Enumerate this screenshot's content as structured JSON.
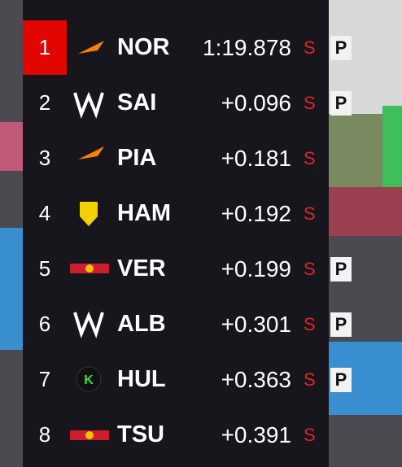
{
  "rows": [
    {
      "pos": "1",
      "driver": "NOR",
      "time": "1:19.878",
      "tyre": "S",
      "badge": "P"
    },
    {
      "pos": "2",
      "driver": "SAI",
      "time": "+0.096",
      "tyre": "S",
      "badge": "P"
    },
    {
      "pos": "3",
      "driver": "PIA",
      "time": "+0.181",
      "tyre": "S"
    },
    {
      "pos": "4",
      "driver": "HAM",
      "time": "+0.192",
      "tyre": "S"
    },
    {
      "pos": "5",
      "driver": "VER",
      "time": "+0.199",
      "tyre": "S",
      "badge": "P"
    },
    {
      "pos": "6",
      "driver": "ALB",
      "time": "+0.301",
      "tyre": "S",
      "badge": "P"
    },
    {
      "pos": "7",
      "driver": "HUL",
      "time": "+0.363",
      "tyre": "S",
      "badge": "P"
    },
    {
      "pos": "8",
      "driver": "TSU",
      "time": "+0.391",
      "tyre": "S"
    }
  ]
}
